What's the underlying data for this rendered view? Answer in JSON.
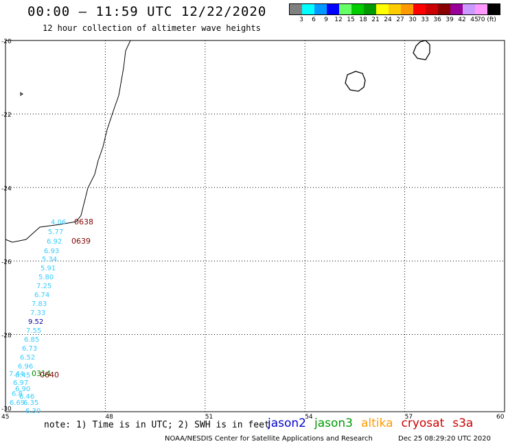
{
  "header": {
    "title": "00:00 – 11:59 UTC 12/22/2020",
    "subtitle": "12 hour collection of altimeter wave heights"
  },
  "legend": {
    "colors": [
      "#808080",
      "#00ffff",
      "#0099ff",
      "#0000ff",
      "#66ff66",
      "#00cc00",
      "#009900",
      "#ffff00",
      "#ffcc00",
      "#ff9900",
      "#ff0000",
      "#cc0000",
      "#880000",
      "#990099",
      "#cc99ff",
      "#ff99ff",
      "#000000"
    ],
    "labels": [
      "3",
      "6",
      "9",
      "12",
      "15",
      "18",
      "21",
      "24",
      "27",
      "30",
      "33",
      "36",
      "39",
      "42",
      "45",
      "70 (ft)"
    ]
  },
  "axes": {
    "lat_labels": [
      "-20",
      "-22",
      "-24",
      "-26",
      "-28",
      "-30"
    ],
    "lon_labels": [
      "45",
      "48",
      "51",
      "54",
      "57",
      "60"
    ]
  },
  "track_labels": [
    {
      "text": "4.06",
      "color": "#33ccff"
    },
    {
      "text": "0638",
      "color": "#800000"
    },
    {
      "text": "5.77",
      "color": "#33ccff"
    },
    {
      "text": "6.92",
      "color": "#33ccff"
    },
    {
      "text": "0639",
      "color": "#800000"
    },
    {
      "text": "6.93",
      "color": "#33ccff"
    },
    {
      "text": "5.34",
      "color": "#33ccff"
    },
    {
      "text": "5.91",
      "color": "#33ccff"
    },
    {
      "text": "5.80",
      "color": "#33ccff"
    },
    {
      "text": "7.25",
      "color": "#33ccff"
    },
    {
      "text": "6.74",
      "color": "#33ccff"
    },
    {
      "text": "7.83",
      "color": "#33ccff"
    },
    {
      "text": "7.33",
      "color": "#33ccff"
    },
    {
      "text": "9.52",
      "color": "#000099"
    },
    {
      "text": "7.55",
      "color": "#33ccff"
    },
    {
      "text": "6.85",
      "color": "#33ccff"
    },
    {
      "text": "6.73",
      "color": "#33ccff"
    },
    {
      "text": "6.52",
      "color": "#33ccff"
    },
    {
      "text": "6.96",
      "color": "#33ccff"
    },
    {
      "text": "7.44",
      "color": "#33ccff"
    },
    {
      "text": "0314",
      "color": "#008800"
    },
    {
      "text": "6.45",
      "color": "#33ccff"
    },
    {
      "text": "0640",
      "color": "#800000"
    },
    {
      "text": "6.97",
      "color": "#33ccff"
    },
    {
      "text": "6.90",
      "color": "#33ccff"
    },
    {
      "text": "6.8",
      "color": "#33ccff"
    },
    {
      "text": "6.46",
      "color": "#33ccff"
    },
    {
      "text": "6.69",
      "color": "#33ccff"
    },
    {
      "text": "6.35",
      "color": "#33ccff"
    },
    {
      "text": "6.30",
      "color": "#33ccff"
    }
  ],
  "footer": {
    "note": "note: 1) Time is in UTC; 2) SWH is in feet",
    "satellites": [
      {
        "name": "jason2",
        "color": "#0000cc"
      },
      {
        "name": "jason3",
        "color": "#009900"
      },
      {
        "name": "altika",
        "color": "#ff9900"
      },
      {
        "name": "cryosat",
        "color": "#cc0000"
      },
      {
        "name": "s3a",
        "color": "#cc0000"
      }
    ],
    "credit": "NOAA/NESDIS Center for Satellite Applications and Research",
    "timestamp": "Dec 25 08:29:20 UTC 2020"
  }
}
